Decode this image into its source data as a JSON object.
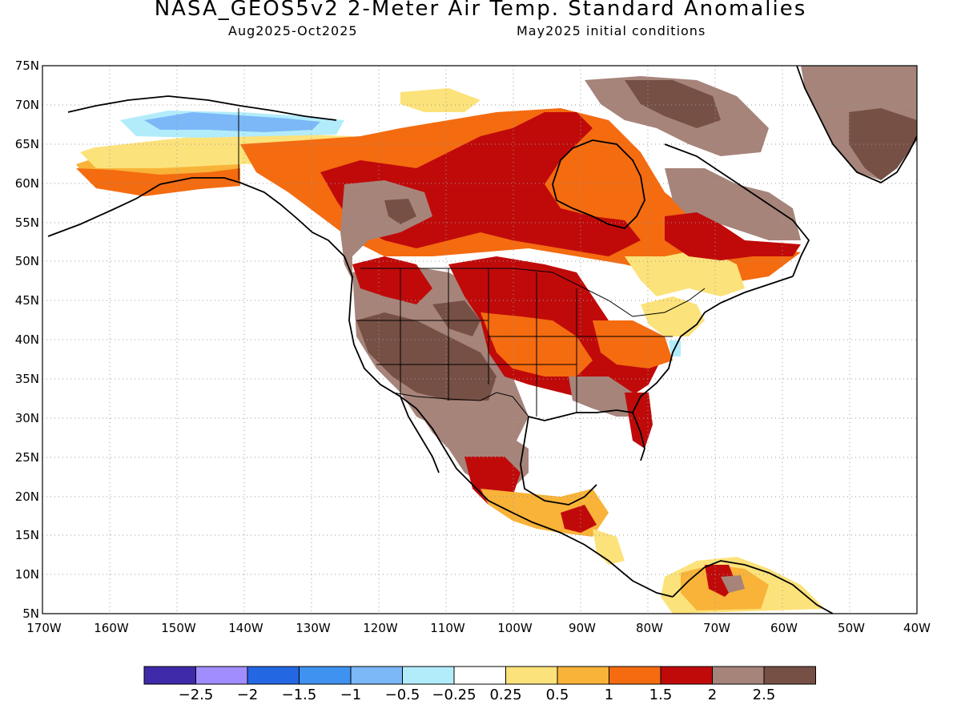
{
  "header": {
    "title": "NASA_GEOS5v2 2-Meter Air Temp. Standard Anomalies",
    "period": "Aug2025-Oct2025",
    "init": "May2025 initial conditions"
  },
  "axes": {
    "lat_labels": [
      "75N",
      "70N",
      "65N",
      "60N",
      "55N",
      "50N",
      "45N",
      "40N",
      "35N",
      "30N",
      "25N",
      "20N",
      "15N",
      "10N",
      "5N"
    ],
    "lon_labels": [
      "170W",
      "160W",
      "150W",
      "140W",
      "130W",
      "120W",
      "110W",
      "100W",
      "90W",
      "80W",
      "70W",
      "60W",
      "50W",
      "40W"
    ]
  },
  "colorbar": {
    "colors": [
      "#3f2aa9",
      "#a28dff",
      "#2467e3",
      "#3f92f0",
      "#7cb7f7",
      "#b2ecfb",
      "#ffffff",
      "#fce27a",
      "#f8b338",
      "#f46b10",
      "#c00a0a",
      "#a6847a",
      "#765045"
    ],
    "labels": [
      "-2.5",
      "-2",
      "-1.5",
      "-1",
      "-0.5",
      "-0.25",
      "0.25",
      "0.5",
      "1",
      "1.5",
      "2",
      "2.5"
    ]
  },
  "colors": {
    "cold_light": "#b2ecfb",
    "cold_mid": "#7cb7f7",
    "neutral": "#ffffff",
    "warm_light": "#fce27a",
    "warm_mid": "#f8b338",
    "warm": "#f46b10",
    "hot": "#c00a0a",
    "brown_light": "#a6847a",
    "brown_dark": "#765045"
  }
}
